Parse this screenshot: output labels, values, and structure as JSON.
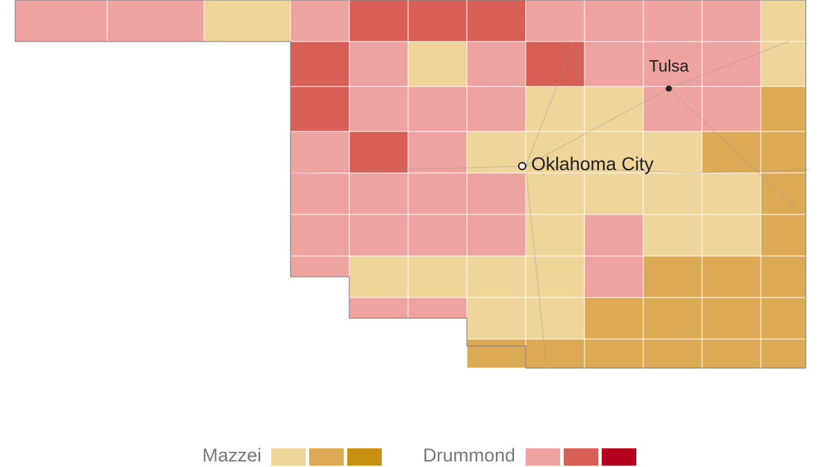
{
  "map": {
    "cities": [
      {
        "name": "Tulsa",
        "kind": "city"
      },
      {
        "name": "Oklahoma City",
        "kind": "capital"
      }
    ],
    "legend": [
      {
        "name": "Mazzei",
        "colors": [
          "#efd59a",
          "#dcaa55",
          "#c98f10"
        ]
      },
      {
        "name": "Drummond",
        "colors": [
          "#eea3a0",
          "#d85f56",
          "#b5001c"
        ]
      }
    ]
  }
}
